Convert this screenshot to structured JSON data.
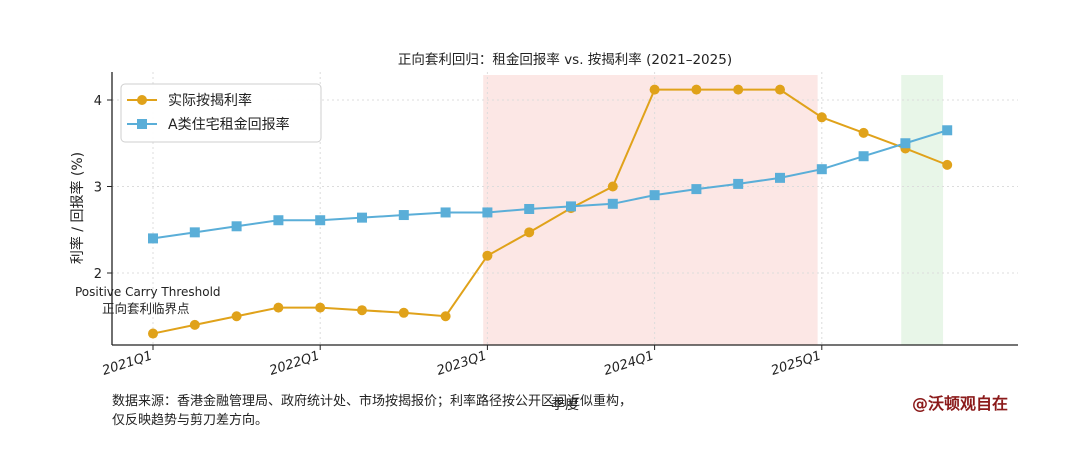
{
  "chart_data": {
    "type": "line",
    "title": "正向套利回归：租金回报率 vs. 按揭利率 (2021–2025)",
    "xlabel": "季度",
    "ylabel": "利率 / 回报率 (%)",
    "x_tick_labels": [
      "2021Q1",
      "2022Q1",
      "2023Q1",
      "2024Q1",
      "2025Q1"
    ],
    "yticks": [
      2,
      3,
      4
    ],
    "ylim": [
      1.3,
      4.2
    ],
    "legend_position": "top-left",
    "grid": true,
    "series": [
      {
        "name": "实际按揭利率",
        "color": "#e0a21a",
        "marker": "circle",
        "values": [
          1.3,
          1.4,
          1.5,
          1.6,
          1.6,
          1.57,
          1.54,
          1.5,
          2.2,
          2.47,
          2.75,
          3.0,
          4.12,
          4.12,
          4.12,
          4.12,
          3.8,
          3.62,
          3.44,
          3.25
        ]
      },
      {
        "name": "A类住宅租金回报率",
        "color": "#5aaed8",
        "marker": "square",
        "values": [
          2.4,
          2.47,
          2.54,
          2.61,
          2.61,
          2.64,
          2.67,
          2.7,
          2.7,
          2.74,
          2.77,
          2.8,
          2.9,
          2.97,
          3.03,
          3.1,
          3.2,
          3.35,
          3.5,
          3.65
        ]
      }
    ],
    "shaded_regions": [
      {
        "from_index": 7.9,
        "to_index": 15.9,
        "color": "#fbe3e1"
      },
      {
        "from_index": 17.9,
        "to_index": 18.9,
        "color": "#e4f4e4"
      }
    ],
    "annotation": {
      "line1": "Positive Carry Threshold",
      "line2": "正向套利临界点"
    }
  },
  "footnote": {
    "line1": "数据来源：香港金融管理局、政府统计处、市场按揭报价；利率路径按公开区间近似重构，",
    "line2": "仅反映趋势与剪刀差方向。"
  },
  "watermark": "@沃顿观自在"
}
